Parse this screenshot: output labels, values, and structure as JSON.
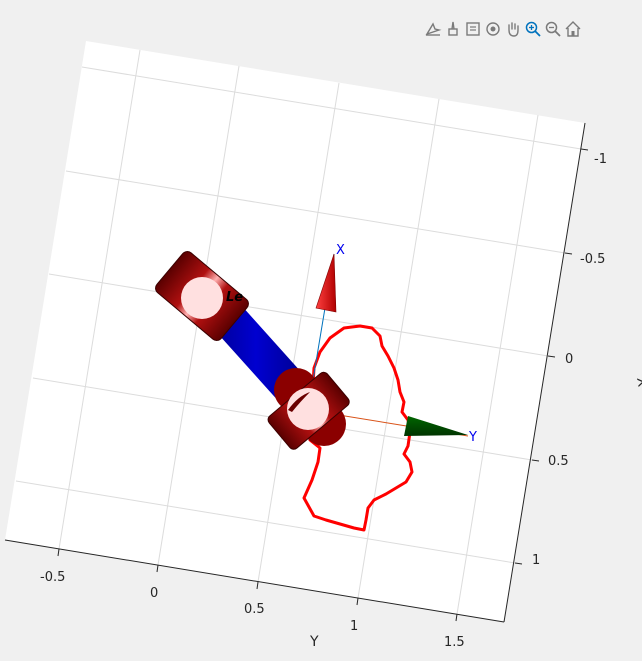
{
  "toolbar": {
    "tools": [
      {
        "name": "data-tip-icon",
        "title": "Data Tips"
      },
      {
        "name": "brush-icon",
        "title": "Brush"
      },
      {
        "name": "link-plot-icon",
        "title": "Link"
      },
      {
        "name": "rotate-3d-icon",
        "title": "Rotate 3D"
      },
      {
        "name": "pan-icon",
        "title": "Pan"
      },
      {
        "name": "zoom-in-icon",
        "title": "Zoom In"
      },
      {
        "name": "zoom-out-icon",
        "title": "Zoom Out"
      },
      {
        "name": "home-icon",
        "title": "Restore View"
      }
    ],
    "active_color": "#0072bd"
  },
  "plot": {
    "y_axis_ticks": [
      "-0.5",
      "0",
      "0.5",
      "1",
      "1.5"
    ],
    "y_axis_label": "Y",
    "x_axis_ticks": [
      "-1",
      "-0.5",
      "0",
      "0.5",
      "1"
    ],
    "x_axis_label": "X",
    "frame_labels": {
      "x": "X",
      "y": "Y"
    },
    "link_label": "Le",
    "colors": {
      "link": "#0000b4",
      "joint": "#8b0000",
      "marker": "#ffe0e0",
      "mesh_outline": "#ff0000",
      "frame_x_arrow": "#d10000",
      "frame_y_arrow": "#004d00",
      "grid": "#dcdcdc"
    }
  }
}
